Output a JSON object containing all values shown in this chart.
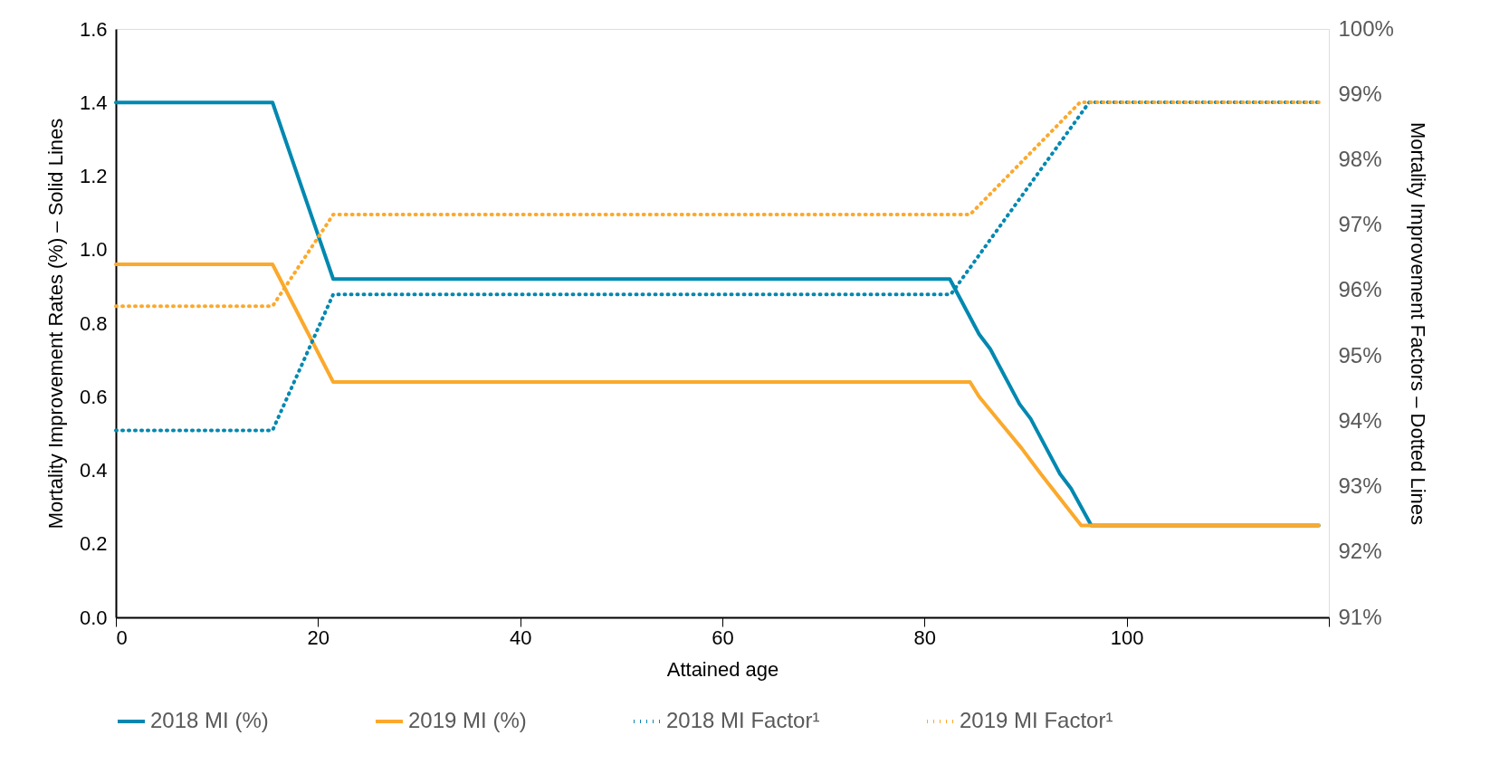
{
  "chart_data": {
    "type": "line",
    "xlabel": "Attained age",
    "ylabel": "Mortality Improvement Rates (%) – Solid Lines",
    "y2label": "Mortality Improvement Factors – Dotted Lines",
    "xlim": [
      0,
      120
    ],
    "xticks": [
      0,
      20,
      40,
      60,
      80,
      100,
      {
        "value": 120,
        "label": null
      }
    ],
    "ylim": [
      0,
      1.6
    ],
    "yticks": [
      {
        "value": 0,
        "label": "0.0"
      },
      0.2,
      0.4,
      0.6,
      0.8,
      {
        "value": 1,
        "label": "1.0"
      },
      1.2,
      1.4,
      1.6
    ],
    "y2lim": [
      91,
      100
    ],
    "y2ticks": [
      {
        "value": 91,
        "label": "91%"
      },
      {
        "value": 92,
        "label": "92%"
      },
      {
        "value": 93,
        "label": "93%"
      },
      {
        "value": 94,
        "label": "94%"
      },
      {
        "value": 95,
        "label": "95%"
      },
      {
        "value": 96,
        "label": "96%"
      },
      {
        "value": 97,
        "label": "97%"
      },
      {
        "value": 98,
        "label": "98%"
      },
      {
        "value": 99,
        "label": "99%"
      },
      {
        "value": 100,
        "label": "100%"
      }
    ],
    "legend": "bottom",
    "series": [
      {
        "name": "2018 MI (%)",
        "color": "#0088b0",
        "line_style": "solid",
        "x": [
          0,
          15.5,
          21.5,
          82.5,
          85.4,
          86.5,
          89.4,
          90.5,
          93.4,
          94.5,
          96.5,
          119
        ],
        "values": [
          1.4,
          1.4,
          0.92,
          0.92,
          0.77,
          0.73,
          0.58,
          0.54,
          0.39,
          0.35,
          0.25,
          0.25
        ]
      },
      {
        "name": "2019 MI (%)",
        "color": "#fba92c",
        "line_style": "solid",
        "x": [
          0,
          15.5,
          21.5,
          84.5,
          85.4,
          87.5,
          89.6,
          91.5,
          93.5,
          95.5,
          119
        ],
        "values": [
          0.96,
          0.96,
          0.64,
          0.64,
          0.6,
          0.53,
          0.46,
          0.39,
          0.32,
          0.25,
          0.25
        ]
      },
      {
        "name": "2018 MI Factor¹",
        "color": "#0088b0",
        "line_style": "dotted",
        "axis": "y2",
        "x": [
          0,
          15.5,
          21.5,
          82.6,
          96.3,
          119
        ],
        "values": [
          93.86,
          93.86,
          95.94,
          95.94,
          98.88,
          98.88
        ]
      },
      {
        "name": "2019 MI Factor¹",
        "color": "#fba92c",
        "line_style": "dotted",
        "axis": "y2",
        "x": [
          0,
          15.5,
          21.5,
          84.5,
          95.4,
          119
        ],
        "values": [
          95.76,
          95.76,
          97.16,
          97.16,
          98.88,
          98.88
        ]
      }
    ]
  }
}
